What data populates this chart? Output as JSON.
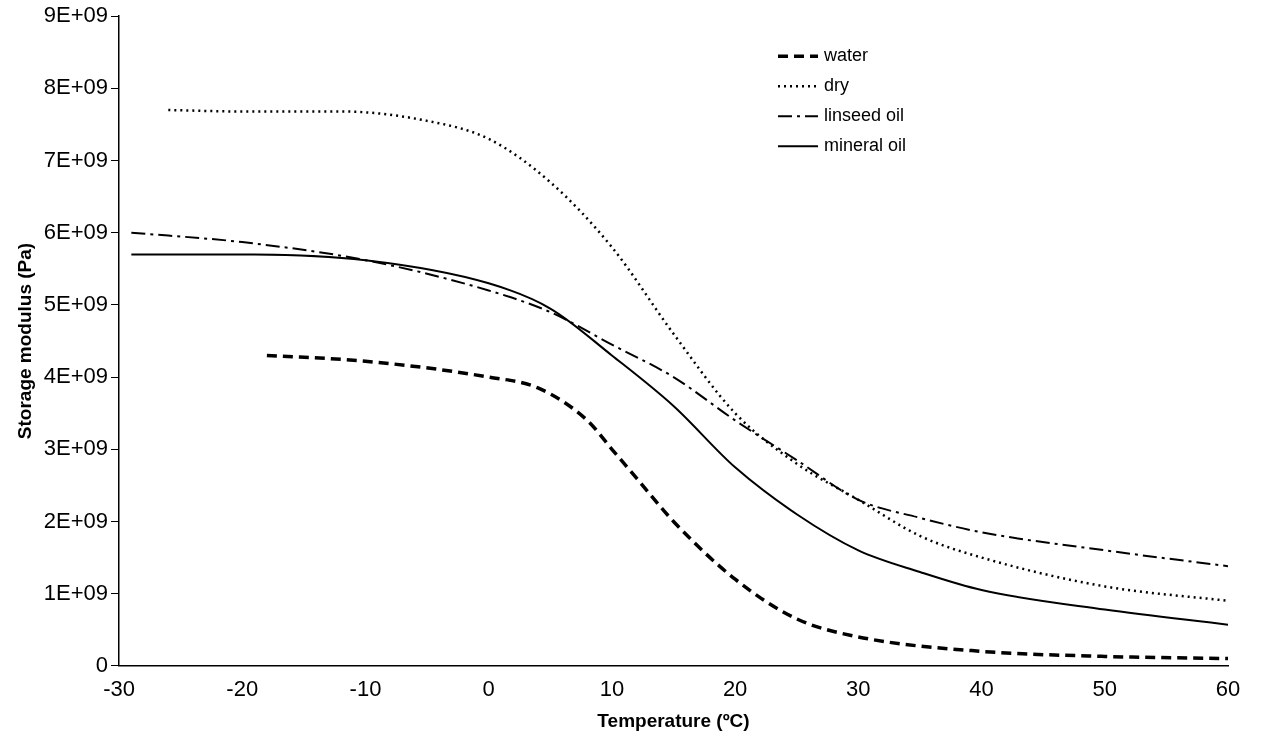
{
  "chart_data": {
    "type": "line",
    "xlabel": "Temperature (ºC)",
    "ylabel": "Storage modulus (Pa)",
    "xlim": [
      -30,
      60
    ],
    "xticks": [
      -30,
      -20,
      -10,
      0,
      10,
      20,
      30,
      40,
      50,
      60
    ],
    "ylim": [
      0,
      9000000000
    ],
    "yticks": [
      0,
      {
        "value": 1000000000,
        "label": "1E+09"
      },
      {
        "value": 2000000000,
        "label": "2E+09"
      },
      {
        "value": 3000000000,
        "label": "3E+09"
      },
      {
        "value": 4000000000,
        "label": "4E+09"
      },
      {
        "value": 5000000000,
        "label": "5E+09"
      },
      {
        "value": 6000000000,
        "label": "6E+09"
      },
      {
        "value": 7000000000,
        "label": "7E+09"
      },
      {
        "value": 8000000000,
        "label": "8E+09"
      },
      {
        "value": 9000000000,
        "label": "9E+09"
      }
    ],
    "grid": false,
    "legend": "top right",
    "marker": "none",
    "series": [
      {
        "name": "water",
        "color": "#000000",
        "line_style": "dashed",
        "x": [
          -18,
          -10,
          0,
          4,
          8,
          10,
          12,
          15,
          20,
          25,
          30,
          40,
          50,
          60
        ],
        "values": [
          4300000000,
          4220000000,
          4000000000,
          3850000000,
          3400000000,
          3000000000,
          2600000000,
          2000000000,
          1200000000,
          650000000,
          400000000,
          200000000,
          130000000,
          100000000
        ]
      },
      {
        "name": "dry",
        "color": "#000000",
        "line_style": "dotted",
        "x": [
          -26,
          -20,
          -12,
          -5,
          0,
          5,
          10,
          15,
          20,
          25,
          30,
          35,
          40,
          50,
          60
        ],
        "values": [
          7700000000,
          7680000000,
          7680000000,
          7550000000,
          7300000000,
          6700000000,
          5800000000,
          4600000000,
          3500000000,
          2800000000,
          2300000000,
          1800000000,
          1500000000,
          1100000000,
          900000000
        ]
      },
      {
        "name": "linseed oil",
        "color": "#000000",
        "line_style": "dashdot",
        "x": [
          -29,
          -20,
          -10,
          0,
          5,
          10,
          15,
          20,
          25,
          30,
          35,
          40,
          50,
          60
        ],
        "values": [
          6000000000,
          5870000000,
          5620000000,
          5200000000,
          4900000000,
          4450000000,
          4000000000,
          3400000000,
          2850000000,
          2300000000,
          2050000000,
          1850000000,
          1600000000,
          1380000000
        ]
      },
      {
        "name": "mineral oil",
        "color": "#000000",
        "line_style": "solid",
        "x": [
          -29,
          -20,
          -10,
          0,
          5,
          10,
          15,
          20,
          25,
          30,
          35,
          40,
          50,
          60
        ],
        "values": [
          5700000000,
          5700000000,
          5620000000,
          5300000000,
          4950000000,
          4300000000,
          3600000000,
          2750000000,
          2100000000,
          1600000000,
          1300000000,
          1050000000,
          780000000,
          570000000
        ]
      }
    ]
  }
}
